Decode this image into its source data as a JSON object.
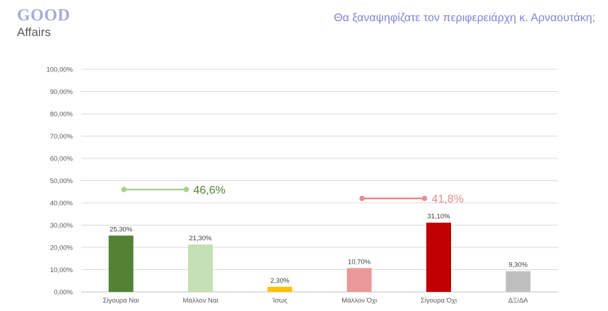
{
  "logo": {
    "line1": "GOOD",
    "line2": "Affairs"
  },
  "title": "Θα ξαναψηφίζατε τον περιφερειάρχη κ. Αρναουτάκη;",
  "chart_data": {
    "type": "bar",
    "categories": [
      "Σίγουρα Ναι",
      "Μάλλον Ναι",
      "Ίσως",
      "Μάλλον Όχι",
      "Σίγουρα Όχι",
      "ΔΞ/ΔΑ"
    ],
    "values": [
      25.3,
      21.3,
      2.3,
      10.7,
      31.1,
      9.3
    ],
    "value_labels": [
      "25,30%",
      "21,30%",
      "2,30%",
      "10,70%",
      "31,10%",
      "9,30%"
    ],
    "bar_colors": [
      "#548235",
      "#c5e0b4",
      "#ffc000",
      "#ea9999",
      "#c00000",
      "#bfbfbf"
    ],
    "ylim": [
      0,
      100
    ],
    "yticks": [
      "0,00%",
      "10,00%",
      "20,00%",
      "30,00%",
      "40,00%",
      "50,00%",
      "60,00%",
      "70,00%",
      "80,00%",
      "90,00%",
      "100,00%"
    ],
    "grid": true,
    "annotations": [
      {
        "text": "46,6%",
        "color": "#a9d18e",
        "text_color": "#548235",
        "from_index": 0,
        "to_index": 1,
        "at_value": 46
      },
      {
        "text": "41,8%",
        "color": "#e58e8e",
        "text_color": "#e58e8e",
        "from_index": 3,
        "to_index": 4,
        "at_value": 42
      }
    ]
  }
}
